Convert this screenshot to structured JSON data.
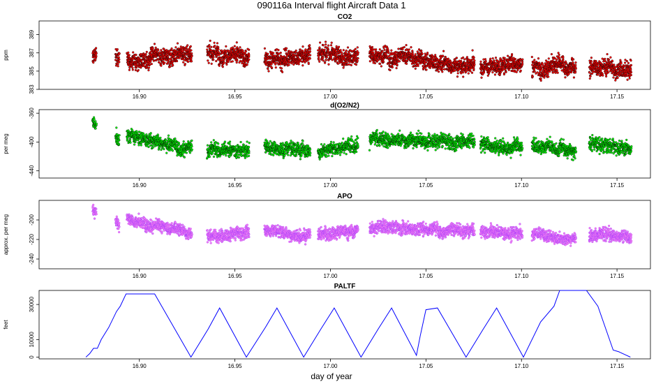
{
  "title": "090116a   Interval flight Aircraft Data 1",
  "xlabel": "day of year",
  "x_ticks": [
    "16.90",
    "16.95",
    "17.00",
    "17.05",
    "17.10",
    "17.15"
  ],
  "chart_data": [
    {
      "type": "scatter",
      "title": "CO2",
      "ylabel": "ppm",
      "ylim": [
        383,
        390.5
      ],
      "xlim": [
        16.8475,
        17.1675
      ],
      "y_ticks": [
        "383",
        "385",
        "387",
        "389"
      ],
      "color": "#ff0000",
      "segments": [
        {
          "x": [
            16.8755,
            16.8775
          ],
          "y": [
            386.6,
            386.6
          ]
        },
        {
          "x": [
            16.8875,
            16.8895
          ],
          "y": [
            386.5,
            386.5
          ]
        },
        {
          "x": [
            16.8935,
            16.9275
          ],
          "y": [
            386.2,
            387.0
          ]
        },
        {
          "x": [
            16.9355,
            16.9575
          ],
          "y": [
            387.0,
            386.6
          ]
        },
        {
          "x": [
            16.9655,
            16.9895
          ],
          "y": [
            386.3,
            386.8
          ]
        },
        {
          "x": [
            16.9935,
            17.0145
          ],
          "y": [
            386.8,
            386.4
          ]
        },
        {
          "x": [
            17.0205,
            17.0755
          ],
          "y": [
            386.9,
            385.5
          ]
        },
        {
          "x": [
            17.0785,
            17.1005
          ],
          "y": [
            385.3,
            386.0
          ]
        },
        {
          "x": [
            17.1055,
            17.1285
          ],
          "y": [
            385.6,
            385.2
          ]
        },
        {
          "x": [
            17.1355,
            17.1575
          ],
          "y": [
            385.4,
            385.5
          ]
        }
      ]
    },
    {
      "type": "scatter",
      "title": "d(O2/N2)",
      "ylabel": "per meg",
      "ylim": [
        -450,
        -355
      ],
      "xlim": [
        16.8475,
        17.1675
      ],
      "y_ticks": [
        "-440",
        "-400",
        "-360"
      ],
      "color": "#00ff00",
      "segments": [
        {
          "x": [
            16.8755,
            16.8775
          ],
          "y": [
            -372,
            -378
          ]
        },
        {
          "x": [
            16.8875,
            16.8895
          ],
          "y": [
            -392,
            -402
          ]
        },
        {
          "x": [
            16.8935,
            16.9275
          ],
          "y": [
            -390,
            -410
          ]
        },
        {
          "x": [
            16.9355,
            16.9575
          ],
          "y": [
            -412,
            -410
          ]
        },
        {
          "x": [
            16.9655,
            16.9895
          ],
          "y": [
            -406,
            -412
          ]
        },
        {
          "x": [
            16.9935,
            17.0145
          ],
          "y": [
            -414,
            -400
          ]
        },
        {
          "x": [
            17.0205,
            17.0755
          ],
          "y": [
            -398,
            -398
          ]
        },
        {
          "x": [
            17.0785,
            17.1005
          ],
          "y": [
            -402,
            -408
          ]
        },
        {
          "x": [
            17.1055,
            17.1285
          ],
          "y": [
            -404,
            -412
          ]
        },
        {
          "x": [
            17.1355,
            17.1575
          ],
          "y": [
            -402,
            -408
          ]
        }
      ]
    },
    {
      "type": "scatter",
      "title": "APO",
      "ylabel": "approx. per meg",
      "ylim": [
        -250,
        -180
      ],
      "xlim": [
        16.8475,
        17.1675
      ],
      "y_ticks": [
        "-240",
        "-220",
        "-200"
      ],
      "color": "#ee82ee",
      "color2": "#9b30ff",
      "segments": [
        {
          "x": [
            16.8755,
            16.8775
          ],
          "y": [
            -190,
            -192
          ]
        },
        {
          "x": [
            16.8875,
            16.8895
          ],
          "y": [
            -200,
            -205
          ]
        },
        {
          "x": [
            16.8935,
            16.9275
          ],
          "y": [
            -200,
            -212
          ]
        },
        {
          "x": [
            16.9355,
            16.9575
          ],
          "y": [
            -216,
            -214
          ]
        },
        {
          "x": [
            16.9655,
            16.9895
          ],
          "y": [
            -210,
            -216
          ]
        },
        {
          "x": [
            16.9935,
            17.0145
          ],
          "y": [
            -216,
            -210
          ]
        },
        {
          "x": [
            17.0205,
            17.0755
          ],
          "y": [
            -208,
            -210
          ]
        },
        {
          "x": [
            17.0785,
            17.1005
          ],
          "y": [
            -212,
            -214
          ]
        },
        {
          "x": [
            17.1055,
            17.1285
          ],
          "y": [
            -214,
            -218
          ]
        },
        {
          "x": [
            17.1355,
            17.1575
          ],
          "y": [
            -214,
            -218
          ]
        }
      ]
    },
    {
      "type": "line",
      "title": "PALTF",
      "ylabel": "feet",
      "ylim": [
        -1000,
        38000
      ],
      "xlim": [
        16.8475,
        17.1675
      ],
      "y_ticks": [
        "0",
        "10000",
        "30000"
      ],
      "y_tick_values": [
        0,
        10000,
        30000
      ],
      "color": "#0000ff",
      "x": [
        16.872,
        16.874,
        16.876,
        16.878,
        16.88,
        16.884,
        16.888,
        16.89,
        16.893,
        16.908,
        16.927,
        16.936,
        16.942,
        16.956,
        16.966,
        16.972,
        16.986,
        16.995,
        17.002,
        17.016,
        17.025,
        17.032,
        17.045,
        17.047,
        17.05,
        17.056,
        17.071,
        17.08,
        17.087,
        17.101,
        17.11,
        17.117,
        17.12,
        17.134,
        17.14,
        17.148,
        17.151,
        17.157
      ],
      "y": [
        0,
        2000,
        5000,
        5000,
        10000,
        17000,
        26000,
        29000,
        36000,
        36000,
        0,
        16000,
        28000,
        0,
        17000,
        28000,
        0,
        16000,
        28000,
        0,
        16000,
        28000,
        1000,
        12000,
        27000,
        28000,
        0,
        16000,
        28000,
        0,
        20000,
        29000,
        38000,
        38000,
        29000,
        4000,
        3000,
        0
      ]
    }
  ]
}
